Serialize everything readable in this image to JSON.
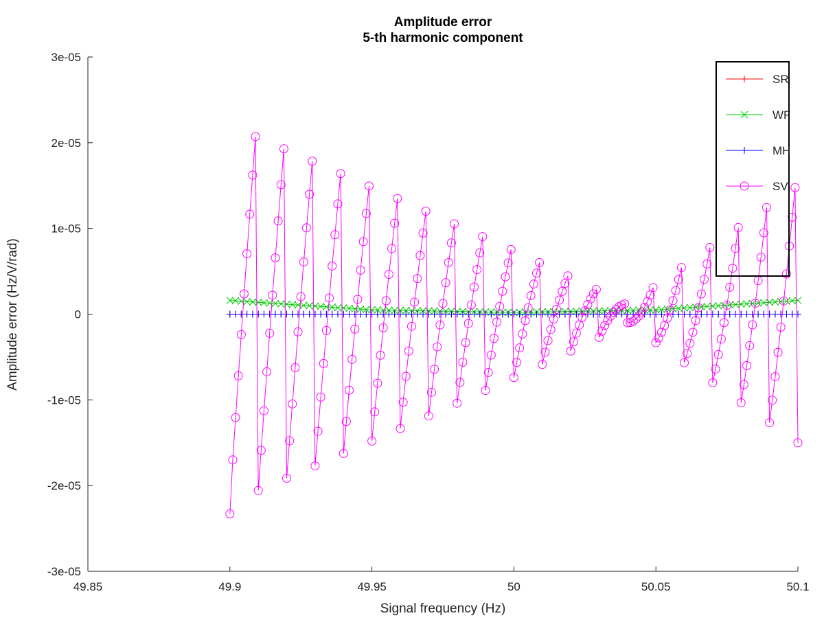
{
  "chart_data": {
    "type": "line",
    "title": "Amplitude error",
    "subtitle": "5-th harmonic component",
    "xlabel": "Signal frequency (Hz)",
    "ylabel": "Amplitude error (Hz/V/rad)",
    "xlim": [
      49.85,
      50.1
    ],
    "ylim": [
      -3e-05,
      3e-05
    ],
    "x_ticks": [
      "49.85",
      "49.9",
      "49.95",
      "50",
      "50.05",
      "50.1"
    ],
    "x_tick_values": [
      49.85,
      49.9,
      49.95,
      50.0,
      50.05,
      50.1
    ],
    "y_ticks": [
      "-3e-05",
      "-2e-05",
      "-1e-05",
      "0",
      "1e-05",
      "2e-05",
      "3e-05"
    ],
    "y_tick_values": [
      -3e-05,
      -2e-05,
      -1e-05,
      0,
      1e-05,
      2e-05,
      3e-05
    ],
    "x_range": [
      49.9,
      50.1
    ],
    "x_step": 0.001,
    "legend_position": "top-right",
    "grid": false,
    "series": [
      {
        "name": "SR",
        "color": "#ff0000",
        "marker": "plus",
        "description": "approximately zero across the full range",
        "values": [
          0,
          0
        ]
      },
      {
        "name": "WF",
        "color": "#00cc00",
        "marker": "cross",
        "description": "about 1.6e-06 at both ends, dipping to about 2e-07 near 50.0",
        "samples": [
          {
            "x": 49.9,
            "y": 1.6e-06
          },
          {
            "x": 49.95,
            "y": 5e-07
          },
          {
            "x": 50.0,
            "y": 2e-07
          },
          {
            "x": 50.05,
            "y": 5e-07
          },
          {
            "x": 50.1,
            "y": 1.6e-06
          }
        ]
      },
      {
        "name": "MH",
        "color": "#0000ff",
        "marker": "plus",
        "description": "approximately zero across the full range",
        "values": [
          0,
          0
        ]
      },
      {
        "name": "SV",
        "color": "#ff00ff",
        "marker": "circle",
        "description": "oscillating sawtooth, envelope largest near 49.9 and shrinking toward a minimum around 50.04, growing again toward 50.1",
        "peaks": [
          {
            "x": 49.9,
            "y": -2.33e-05
          },
          {
            "x": 49.909,
            "y": 1.87e-05
          },
          {
            "x": 49.91,
            "y": -2.21e-05
          },
          {
            "x": 49.915,
            "y": 2.21e-05
          },
          {
            "x": 49.925,
            "y": 2.11e-05
          },
          {
            "x": 49.935,
            "y": 2e-05
          },
          {
            "x": 49.945,
            "y": 1.87e-05
          },
          {
            "x": 49.955,
            "y": -1.6e-05
          },
          {
            "x": 49.965,
            "y": -1.43e-05
          },
          {
            "x": 49.975,
            "y": -1.25e-05
          },
          {
            "x": 49.985,
            "y": -1.06e-05
          },
          {
            "x": 49.99,
            "y": 1.12e-05
          },
          {
            "x": 50.0,
            "y": 7.4e-06
          },
          {
            "x": 50.01,
            "y": 5.8e-06
          },
          {
            "x": 50.02,
            "y": 5.1e-06
          },
          {
            "x": 50.03,
            "y": 2.3e-06
          },
          {
            "x": 50.04,
            "y": 1e-06
          },
          {
            "x": 50.05,
            "y": 3e-06
          },
          {
            "x": 50.06,
            "y": 5.1e-06
          },
          {
            "x": 50.065,
            "y": 7.4e-06
          },
          {
            "x": 50.075,
            "y": 9.8e-06
          },
          {
            "x": 50.085,
            "y": 1.23e-05
          },
          {
            "x": 50.094,
            "y": -1e-05
          },
          {
            "x": 50.095,
            "y": 1.55e-05
          },
          {
            "x": 50.1,
            "y": 0
          }
        ]
      }
    ]
  }
}
